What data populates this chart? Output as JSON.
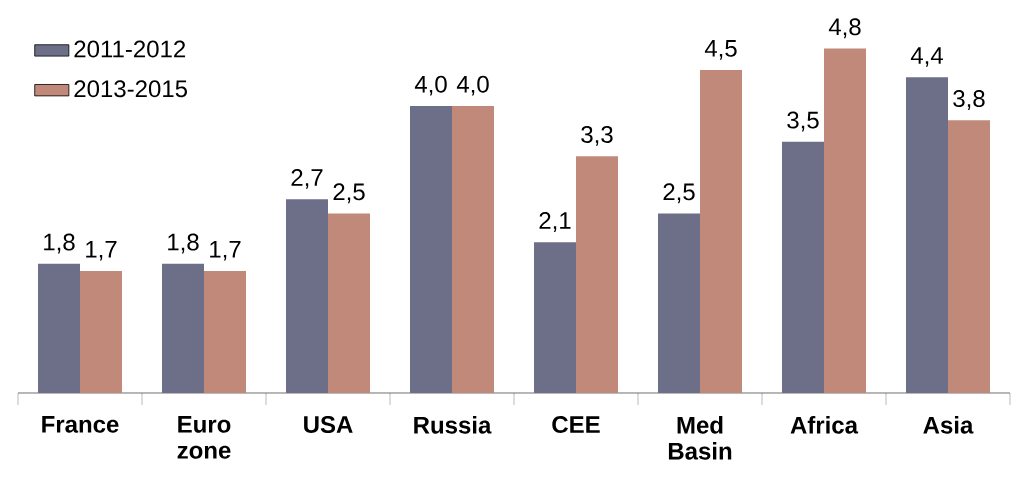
{
  "chart_data": {
    "type": "bar",
    "categories": [
      "France",
      "Euro zone",
      "USA",
      "Russia",
      "CEE",
      "Med Basin",
      "Africa",
      "Asia"
    ],
    "series": [
      {
        "name": "2011-2012",
        "color": "#6d6e87",
        "values": [
          1.8,
          1.8,
          2.7,
          4.0,
          2.1,
          2.5,
          3.5,
          4.4
        ],
        "value_labels": [
          "1,8",
          "1,8",
          "2,7",
          "4,0",
          "2,1",
          "2,5",
          "3,5",
          "4,4"
        ]
      },
      {
        "name": "2013-2015",
        "color": "#c0897a",
        "values": [
          1.7,
          1.7,
          2.5,
          4.0,
          3.3,
          4.5,
          4.8,
          3.8
        ],
        "value_labels": [
          "1,7",
          "1,7",
          "2,5",
          "4,0",
          "3,3",
          "4,5",
          "4,8",
          "3,8"
        ]
      }
    ],
    "legend": "top left"
  }
}
